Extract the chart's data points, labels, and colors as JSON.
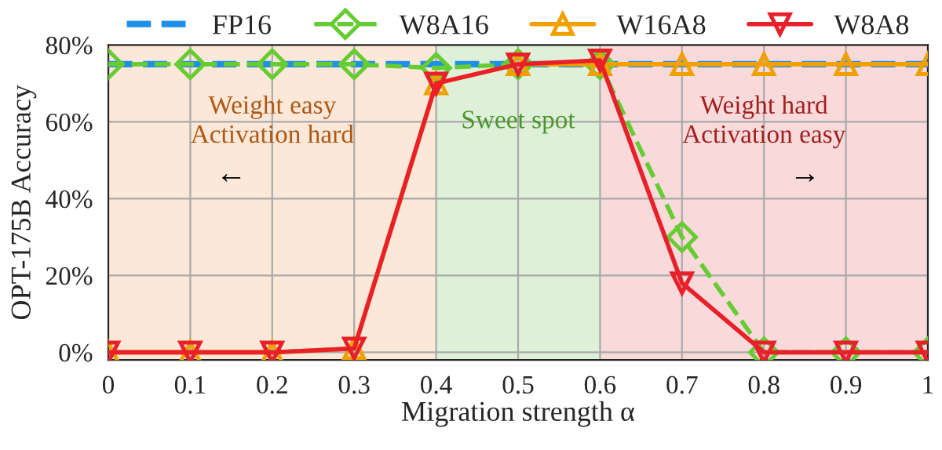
{
  "chart_data": {
    "type": "line",
    "xlabel": "Migration strength α",
    "ylabel": "OPT-175B Accuracy",
    "x": [
      0,
      0.1,
      0.2,
      0.3,
      0.4,
      0.5,
      0.6,
      0.7,
      0.8,
      0.9,
      1
    ],
    "series": [
      {
        "name": "FP16",
        "color": "#1f8fe8",
        "line_style": "dashed",
        "marker": "none",
        "values": [
          75,
          75,
          75,
          75,
          75,
          75,
          75,
          75,
          75,
          75,
          75
        ]
      },
      {
        "name": "W8A16",
        "color": "#66cc33",
        "line_style": "dashed",
        "marker": "diamond",
        "values": [
          75,
          75,
          75,
          75,
          74,
          75,
          75,
          30,
          0,
          0,
          0
        ]
      },
      {
        "name": "W16A8",
        "color": "#f0a000",
        "line_style": "solid",
        "marker": "triangle",
        "values": [
          0,
          0,
          0,
          1,
          70,
          75,
          75,
          75,
          75,
          75,
          75
        ]
      },
      {
        "name": "W8A8",
        "color": "#e8202a",
        "line_style": "solid",
        "marker": "triangle_down",
        "values": [
          0,
          0,
          0,
          1,
          70,
          75,
          76,
          18,
          0,
          0,
          0
        ]
      }
    ],
    "xlim": [
      0,
      1
    ],
    "xticks": [
      0,
      0.1,
      0.2,
      0.3,
      0.4,
      0.5,
      0.6,
      0.7,
      0.8,
      0.9,
      1
    ],
    "ylim": [
      -2,
      80
    ],
    "yticks": [
      {
        "value": 0,
        "label": "0%"
      },
      {
        "value": 20,
        "label": "20%"
      },
      {
        "value": 40,
        "label": "40%"
      },
      {
        "value": 60,
        "label": "60%"
      },
      {
        "value": 80,
        "label": "80%"
      }
    ],
    "bands": [
      {
        "axis": "x",
        "from": 0,
        "to": 0.4,
        "label": "Weight easy\nActivation hard",
        "color": "#fce8d8"
      },
      {
        "axis": "x",
        "from": 0.4,
        "to": 0.6,
        "label": "Sweet spot",
        "color": "#dff0d8"
      },
      {
        "axis": "x",
        "from": 0.6,
        "to": 1,
        "label": "Weight hard\nActivation easy",
        "color": "#f8dada"
      }
    ],
    "annotations": [
      "←",
      "→"
    ],
    "grid": true,
    "legend": "top"
  }
}
